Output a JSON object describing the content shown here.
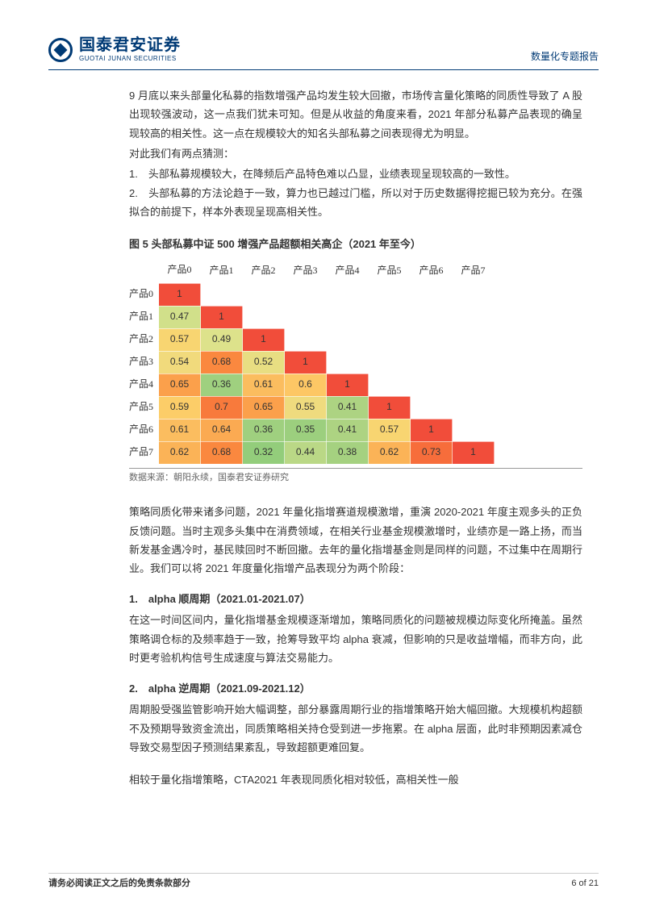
{
  "header": {
    "logo_cn": "国泰君安证券",
    "logo_en": "GUOTAI JUNAN SECURITIES",
    "report_type": "数量化专题报告"
  },
  "paragraphs": {
    "p1": "9 月底以来头部量化私募的指数增强产品均发生较大回撤，市场传言量化策略的同质性导致了 A 股出现较强波动，这一点我们犹未可知。但是从收益的角度来看，2021 年部分私募产品表现的确呈现较高的相关性。这一点在规模较大的知名头部私募之间表现得尤为明显。",
    "p2": "对此我们有两点猜测：",
    "ol1": "1.　头部私募规模较大，在降频后产品特色难以凸显，业绩表现呈现较高的一致性。",
    "ol2": "2.　头部私募的方法论趋于一致，算力也已越过门槛，所以对于历史数据得挖掘已较为充分。在强拟合的前提下，样本外表现呈现高相关性。",
    "p3": "策略同质化带来诸多问题，2021 年量化指增赛道规模激增，重演 2020-2021 年度主观多头的正负反馈问题。当时主观多头集中在消费领域，在相关行业基金规模激增时，业绩亦是一路上扬，而当新发基金遇冷时，基民赎回时不断回撤。去年的量化指增基金则是同样的问题，不过集中在周期行业。我们可以将 2021 年度量化指增产品表现分为两个阶段：",
    "h1": "1.　alpha 顺周期（2021.01-2021.07）",
    "p4": "在这一时间区间内，量化指增基金规模逐渐增加，策略同质化的问题被规模边际变化所掩盖。虽然策略调仓标的及频率趋于一致，抢筹导致平均 alpha 衰减，但影响的只是收益增幅，而非方向，此时更考验机构信号生成速度与算法交易能力。",
    "h2": "2.　alpha 逆周期（2021.09-2021.12）",
    "p5": "周期股受强监管影响开始大幅调整，部分暴露周期行业的指增策略开始大幅回撤。大规模机构超额不及预期导致资金流出，同质策略相关持仓受到进一步拖累。在 alpha 层面，此时非预期因素减仓导致交易型因子预测结果紊乱，导致超额更难回复。",
    "p6": "相较于量化指增策略，CTA2021 年表现同质化相对较低，高相关性一般"
  },
  "figure": {
    "title": "图 5 头部私募中证 500 增强产品超额相关高企（2021 年至今）",
    "source": "数据来源：朝阳永续，国泰君安证券研究",
    "col_headers": [
      "产品0",
      "产品1",
      "产品2",
      "产品3",
      "产品4",
      "产品5",
      "产品6",
      "产品7"
    ],
    "row_headers": [
      "产品0",
      "产品1",
      "产品2",
      "产品3",
      "产品4",
      "产品5",
      "产品6",
      "产品7"
    ],
    "matrix": [
      [
        1,
        null,
        null,
        null,
        null,
        null,
        null,
        null
      ],
      [
        0.47,
        1,
        null,
        null,
        null,
        null,
        null,
        null
      ],
      [
        0.57,
        0.49,
        1,
        null,
        null,
        null,
        null,
        null
      ],
      [
        0.54,
        0.68,
        0.52,
        1,
        null,
        null,
        null,
        null
      ],
      [
        0.65,
        0.36,
        0.61,
        0.6,
        1,
        null,
        null,
        null
      ],
      [
        0.59,
        0.7,
        0.65,
        0.55,
        0.41,
        1,
        null,
        null
      ],
      [
        0.61,
        0.64,
        0.36,
        0.35,
        0.41,
        0.57,
        1,
        null
      ],
      [
        0.62,
        0.68,
        0.32,
        0.44,
        0.38,
        0.62,
        0.73,
        1
      ]
    ],
    "colors": [
      [
        "#f14d3a",
        "",
        "",
        "",
        "",
        "",
        "",
        ""
      ],
      [
        "#d1e08a",
        "#f14d3a",
        "",
        "",
        "",
        "",
        "",
        ""
      ],
      [
        "#f8d571",
        "#dde28b",
        "#f14d3a",
        "",
        "",
        "",
        "",
        ""
      ],
      [
        "#f1da7c",
        "#fa883f",
        "#e8de82",
        "#f14d3a",
        "",
        "",
        "",
        ""
      ],
      [
        "#fba04b",
        "#9fd07f",
        "#fbbd5f",
        "#fdc765",
        "#f14d3a",
        "",
        "",
        ""
      ],
      [
        "#fccd68",
        "#f87a3c",
        "#fba04b",
        "#efdb7e",
        "#add382",
        "#f14d3a",
        "",
        ""
      ],
      [
        "#fbbd5f",
        "#fbaa52",
        "#9fd07f",
        "#9ccf7e",
        "#add382",
        "#f8d571",
        "#f14d3a",
        ""
      ],
      [
        "#fbb357",
        "#fa883f",
        "#93cd7b",
        "#bad886",
        "#a5d180",
        "#fbb357",
        "#f76d3b",
        "#f14d3a"
      ]
    ]
  },
  "footer": {
    "left": "请务必阅读正文之后的免责条款部分",
    "right": "6 of 21"
  }
}
